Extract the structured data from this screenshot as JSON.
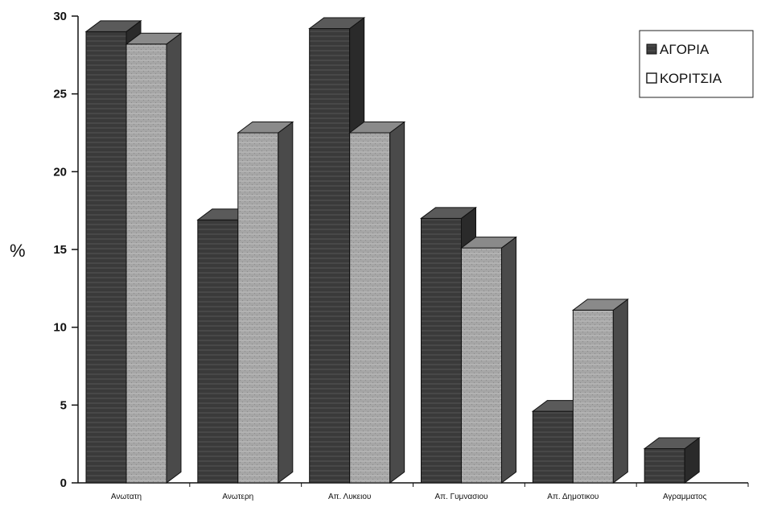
{
  "chart_data": {
    "type": "bar",
    "categories": [
      "Ανωτατη",
      "Ανωτερη",
      "Απ. Λυκειου",
      "Απ. Γυμνασιου",
      "Απ. Δημοτικου",
      "Αγραμματος"
    ],
    "series": [
      {
        "name": "ΑΓΟΡΙΑ",
        "values": [
          29.0,
          16.9,
          29.2,
          17.0,
          4.6,
          2.2
        ]
      },
      {
        "name": "ΚΟΡΙΤΣΙΑ",
        "values": [
          28.2,
          22.5,
          22.5,
          15.1,
          11.1,
          null
        ]
      }
    ],
    "ylabel": "%",
    "ylim": [
      0,
      30
    ],
    "yticks": [
      0,
      5,
      10,
      15,
      20,
      25,
      30
    ],
    "legend_position": "top-right",
    "colors": {
      "boys": "#3a3a3a",
      "girls": "#a6a6a6"
    }
  }
}
